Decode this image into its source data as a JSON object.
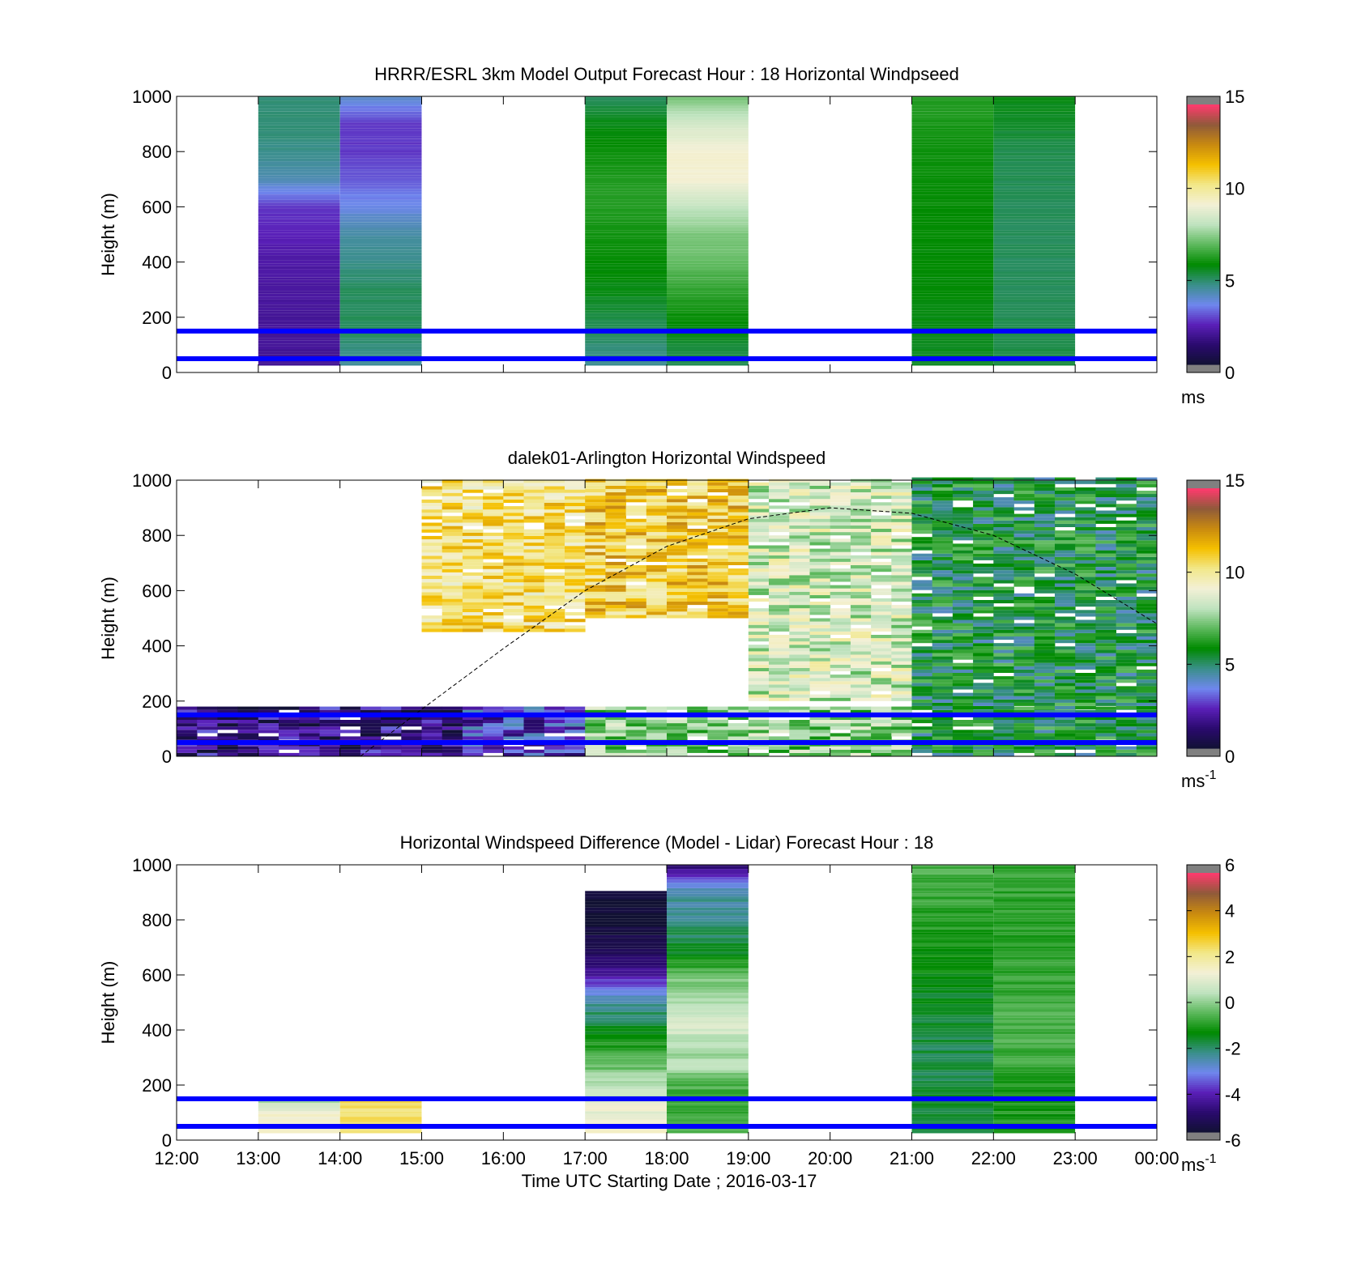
{
  "figure": {
    "xtick_labels": [
      "12:00",
      "13:00",
      "14:00",
      "15:00",
      "16:00",
      "17:00",
      "18:00",
      "19:00",
      "20:00",
      "21:00",
      "22:00",
      "23:00",
      "00:00"
    ],
    "xlabel": "Time UTC  Starting Date ; 2016-03-17"
  },
  "colormap": {
    "name": "windspeed",
    "stops": [
      "#111133",
      "#2a0a6e",
      "#5a1fb8",
      "#6f87ee",
      "#3a8f8a",
      "#008a00",
      "#5cb85c",
      "#bfe3bf",
      "#f3f0d6",
      "#f2e88a",
      "#f5c000",
      "#c98a10",
      "#8f5a3a",
      "#ff3a6e"
    ]
  },
  "chart_data": [
    {
      "type": "heatmap",
      "title": "HRRR/ESRL 3km Model Output   Forecast Hour : 18 Horizontal Windpseed",
      "ylabel": "Height (m)",
      "xlim": [
        "12:00",
        "00:00"
      ],
      "ylim": [
        0,
        1000
      ],
      "yticks": [
        0,
        200,
        400,
        600,
        800,
        1000
      ],
      "colorbar": {
        "range": [
          0,
          15
        ],
        "ticks": [
          0,
          5,
          10,
          15
        ],
        "unit": "ms",
        "unit_sup": ""
      },
      "reference_lines_m": [
        50,
        150
      ],
      "columns": [
        {
          "start": "13:00",
          "end": "14:00",
          "profile": [
            [
              25,
              1.8
            ],
            [
              150,
              1.8
            ],
            [
              300,
              1.9
            ],
            [
              400,
              2.0
            ],
            [
              500,
              2.3
            ],
            [
              600,
              2.6
            ],
            [
              700,
              4.2
            ],
            [
              800,
              4.6
            ],
            [
              900,
              4.8
            ],
            [
              1000,
              4.8
            ]
          ]
        },
        {
          "start": "14:00",
          "end": "15:00",
          "profile": [
            [
              25,
              4.4
            ],
            [
              150,
              5.0
            ],
            [
              300,
              5.0
            ],
            [
              400,
              4.6
            ],
            [
              500,
              4.3
            ],
            [
              600,
              3.6
            ],
            [
              700,
              3.0
            ],
            [
              800,
              2.6
            ],
            [
              900,
              2.6
            ],
            [
              1000,
              3.9
            ]
          ]
        },
        {
          "start": "17:00",
          "end": "18:00",
          "profile": [
            [
              25,
              4.5
            ],
            [
              150,
              5.0
            ],
            [
              300,
              5.6
            ],
            [
              500,
              6.0
            ],
            [
              600,
              6.2
            ],
            [
              700,
              6.2
            ],
            [
              800,
              5.9
            ],
            [
              900,
              5.6
            ],
            [
              1000,
              5.0
            ]
          ]
        },
        {
          "start": "18:00",
          "end": "19:00",
          "profile": [
            [
              25,
              5.0
            ],
            [
              150,
              5.6
            ],
            [
              300,
              6.4
            ],
            [
              400,
              7.0
            ],
            [
              500,
              7.3
            ],
            [
              600,
              8.2
            ],
            [
              700,
              9.3
            ],
            [
              800,
              9.3
            ],
            [
              900,
              8.5
            ],
            [
              1000,
              7.2
            ]
          ]
        },
        {
          "start": "21:00",
          "end": "22:00",
          "profile": [
            [
              25,
              5.4
            ],
            [
              150,
              5.6
            ],
            [
              300,
              5.7
            ],
            [
              500,
              5.8
            ],
            [
              700,
              5.9
            ],
            [
              850,
              6.0
            ],
            [
              1000,
              6.2
            ]
          ]
        },
        {
          "start": "22:00",
          "end": "23:00",
          "profile": [
            [
              25,
              5.2
            ],
            [
              150,
              5.1
            ],
            [
              300,
              5.0
            ],
            [
              600,
              5.0
            ],
            [
              800,
              5.1
            ],
            [
              900,
              5.4
            ],
            [
              1000,
              5.6
            ]
          ]
        }
      ]
    },
    {
      "type": "heatmap",
      "title": "dalek01-Arlington  Horizontal Windspeed",
      "ylabel": "Height (m)",
      "xlim": [
        "12:00",
        "00:00"
      ],
      "ylim": [
        0,
        1000
      ],
      "yticks": [
        0,
        200,
        400,
        600,
        800,
        1000
      ],
      "colorbar": {
        "range": [
          0,
          15
        ],
        "ticks": [
          0,
          5,
          10,
          15
        ],
        "unit": "ms",
        "unit_sup": "-1"
      },
      "reference_lines_m": [
        50,
        150
      ],
      "boundary_layer_curve": [
        [
          "14:15",
          0
        ],
        [
          "15:00",
          170
        ],
        [
          "16:00",
          390
        ],
        [
          "17:00",
          600
        ],
        [
          "18:00",
          760
        ],
        [
          "19:00",
          860
        ],
        [
          "20:00",
          900
        ],
        [
          "21:00",
          880
        ],
        [
          "22:00",
          800
        ],
        [
          "23:00",
          660
        ],
        [
          "00:00",
          480
        ]
      ],
      "regimes": [
        {
          "start": "12:00",
          "end": "15:30",
          "from_m": 0,
          "to_m": 170,
          "speed": 1.5
        },
        {
          "start": "15:30",
          "end": "17:00",
          "from_m": 0,
          "to_m": 170,
          "speed": 2.6
        },
        {
          "start": "17:00",
          "end": "21:00",
          "from_m": 0,
          "to_m": 170,
          "speed": 7.5
        },
        {
          "start": "21:00",
          "end": "00:00",
          "from_m": 0,
          "to_m": 170,
          "speed": 5.5
        },
        {
          "start": "15:00",
          "end": "17:00",
          "from_m": 450,
          "to_m": 1000,
          "speed": 10.5
        },
        {
          "start": "17:00",
          "end": "19:00",
          "from_m": 500,
          "to_m": 1000,
          "speed": 11.2
        },
        {
          "start": "19:00",
          "end": "21:00",
          "from_m": 200,
          "to_m": 1000,
          "speed": 8.5
        },
        {
          "start": "21:00",
          "end": "00:00",
          "from_m": 170,
          "to_m": 1000,
          "speed": 5.5
        }
      ]
    },
    {
      "type": "heatmap",
      "title": "Horizontal Windspeed Difference (Model - Lidar) Forecast Hour : 18",
      "ylabel": "Height (m)",
      "xlim": [
        "12:00",
        "00:00"
      ],
      "ylim": [
        0,
        1000
      ],
      "yticks": [
        0,
        200,
        400,
        600,
        800,
        1000
      ],
      "colorbar": {
        "range": [
          -6,
          6
        ],
        "ticks": [
          -6,
          -4,
          -2,
          0,
          2,
          4,
          6
        ],
        "unit": "ms",
        "unit_sup": "-1"
      },
      "reference_lines_m": [
        50,
        150
      ],
      "columns": [
        {
          "start": "13:00",
          "end": "14:00",
          "profile": [
            [
              25,
              1.6
            ],
            [
              80,
              1.4
            ],
            [
              125,
              1.0
            ],
            [
              140,
              0.3
            ]
          ]
        },
        {
          "start": "14:00",
          "end": "15:00",
          "profile": [
            [
              25,
              2.6
            ],
            [
              150,
              2.5
            ]
          ]
        },
        {
          "start": "17:00",
          "end": "18:00",
          "profile": [
            [
              25,
              1.5
            ],
            [
              120,
              1.2
            ],
            [
              180,
              0.6
            ],
            [
              230,
              0.3
            ],
            [
              280,
              -0.6
            ],
            [
              330,
              -0.9
            ],
            [
              380,
              -1.2
            ],
            [
              400,
              -1.5
            ],
            [
              480,
              -2.4
            ],
            [
              520,
              -2.8
            ],
            [
              560,
              -3.6
            ],
            [
              600,
              -4.4
            ],
            [
              650,
              -5.0
            ],
            [
              700,
              -5.4
            ],
            [
              760,
              -5.8
            ],
            [
              800,
              -6.0
            ],
            [
              850,
              -6.0
            ],
            [
              900,
              -6.0
            ]
          ]
        },
        {
          "start": "18:00",
          "end": "19:00",
          "profile": [
            [
              25,
              -0.6
            ],
            [
              120,
              -0.9
            ],
            [
              200,
              -0.6
            ],
            [
              260,
              0.3
            ],
            [
              300,
              0.2
            ],
            [
              360,
              0.4
            ],
            [
              400,
              0.9
            ],
            [
              480,
              0.6
            ],
            [
              520,
              0.3
            ],
            [
              600,
              -0.4
            ],
            [
              650,
              -1.2
            ],
            [
              700,
              -1.8
            ],
            [
              750,
              -2.0
            ],
            [
              800,
              -2.3
            ],
            [
              900,
              -2.5
            ],
            [
              950,
              -4.0
            ],
            [
              1000,
              -5.0
            ]
          ]
        },
        {
          "start": "21:00",
          "end": "22:00",
          "profile": [
            [
              25,
              -1.8
            ],
            [
              150,
              -1.8
            ],
            [
              240,
              -1.9
            ],
            [
              330,
              -1.9
            ],
            [
              470,
              -1.8
            ],
            [
              600,
              -1.4
            ],
            [
              700,
              -1.2
            ],
            [
              800,
              -1.0
            ],
            [
              900,
              -0.8
            ],
            [
              1000,
              -0.6
            ]
          ]
        },
        {
          "start": "22:00",
          "end": "23:00",
          "profile": [
            [
              25,
              -1.2
            ],
            [
              150,
              -1.1
            ],
            [
              300,
              -0.8
            ],
            [
              400,
              -0.6
            ],
            [
              600,
              -0.9
            ],
            [
              800,
              -1.0
            ],
            [
              900,
              -0.9
            ],
            [
              1000,
              -0.8
            ]
          ]
        }
      ]
    }
  ]
}
